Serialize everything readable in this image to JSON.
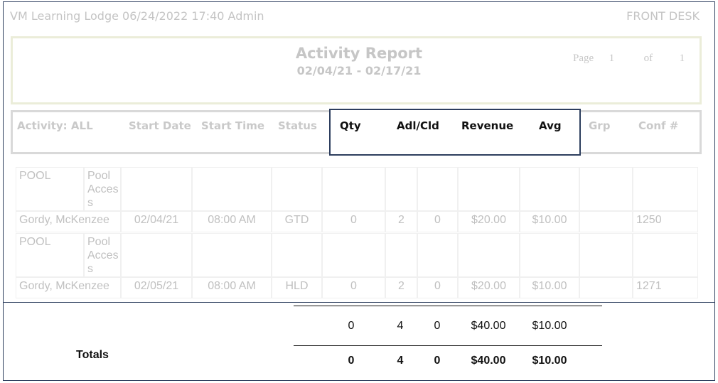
{
  "header": {
    "left": "VM Learning Lodge 06/24/2022 17:40  Admin",
    "right": "FRONT DESK"
  },
  "report": {
    "title": "Activity Report",
    "date_range": "02/04/21 - 02/17/21",
    "page_label": "Page",
    "page_current": "1",
    "page_of_label": "of",
    "page_total": "1"
  },
  "columns": {
    "activity": "Activity: ALL",
    "start_date": "Start Date",
    "start_time": "Start Time",
    "status": "Status",
    "qty": "Qty",
    "adl_cld": "Adl/Cld",
    "revenue": "Revenue",
    "avg": "Avg",
    "grp": "Grp",
    "conf": "Conf #"
  },
  "rows": [
    {
      "activity": "POOL",
      "sub_activity": "Pool Access",
      "guest": "Gordy, McKenzee",
      "start_date": "02/04/21",
      "start_time": "08:00 AM",
      "status": "GTD",
      "qty": "0",
      "adults": "2",
      "children": "0",
      "revenue": "$20.00",
      "avg": "$10.00",
      "grp": "",
      "conf": "1250"
    },
    {
      "activity": "POOL",
      "sub_activity": "Pool Access",
      "guest": "Gordy, McKenzee",
      "start_date": "02/05/21",
      "start_time": "08:00 AM",
      "status": "HLD",
      "qty": "0",
      "adults": "2",
      "children": "0",
      "revenue": "$20.00",
      "avg": "$10.00",
      "grp": "",
      "conf": "1271"
    }
  ],
  "subtotals": {
    "qty": "0",
    "adults": "4",
    "children": "0",
    "revenue": "$40.00",
    "avg": "$10.00"
  },
  "totals": {
    "label": "Totals",
    "qty": "0",
    "adults": "4",
    "children": "0",
    "revenue": "$40.00",
    "avg": "$10.00"
  }
}
